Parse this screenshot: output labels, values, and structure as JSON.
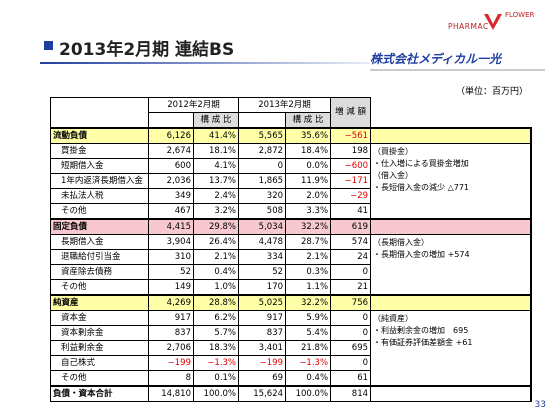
{
  "header": {
    "logo_left": "PHARMAC",
    "logo_right": "FLOWER",
    "title": "2013年2月期 連結BS",
    "company": "株式会社メディカル一光"
  },
  "unit": "（単位：百万円）",
  "table": {
    "columns": {
      "period1": "2012年2月期",
      "period2": "2013年2月期",
      "ratio1": "構 成 比",
      "ratio2": "構 成 比",
      "diff": "増 減 額"
    },
    "groups": [
      {
        "row": [
          "流動負債",
          "6,126",
          "41.4%",
          "5,565",
          "35.6%",
          "−561"
        ],
        "items": [
          [
            "買掛金",
            "2,674",
            "18.1%",
            "2,872",
            "18.4%",
            "198"
          ],
          [
            "短期借入金",
            "600",
            "4.1%",
            "0",
            "0.0%",
            "−600"
          ],
          [
            "1年内返済長期借入金",
            "2,036",
            "13.7%",
            "1,865",
            "11.9%",
            "−171"
          ],
          [
            "未払法人税",
            "349",
            "2.4%",
            "320",
            "2.0%",
            "−29"
          ],
          [
            "その他",
            "467",
            "3.2%",
            "508",
            "3.3%",
            "41"
          ]
        ],
        "notes": [
          "（買掛金）",
          "・仕入増による買掛金増加",
          "（借入金）",
          "・長短借入金の減少 △771"
        ]
      },
      {
        "row": [
          "固定負債",
          "4,415",
          "29.8%",
          "5,034",
          "32.2%",
          "619"
        ],
        "items": [
          [
            "長期借入金",
            "3,904",
            "26.4%",
            "4,478",
            "28.7%",
            "574"
          ],
          [
            "退職給付引当金",
            "310",
            "2.1%",
            "334",
            "2.1%",
            "24"
          ],
          [
            "資産除去債務",
            "52",
            "0.4%",
            "52",
            "0.3%",
            "0"
          ],
          [
            "その他",
            "149",
            "1.0%",
            "170",
            "1.1%",
            "21"
          ]
        ],
        "notes": [
          "（長期借入金）",
          "・長期借入金の増加 +574"
        ]
      },
      {
        "row": [
          "純資産",
          "4,269",
          "28.8%",
          "5,025",
          "32.2%",
          "756"
        ],
        "items": [
          [
            "資本金",
            "917",
            "6.2%",
            "917",
            "5.9%",
            "0"
          ],
          [
            "資本剰余金",
            "837",
            "5.7%",
            "837",
            "5.4%",
            "0"
          ],
          [
            "利益剰余金",
            "2,706",
            "18.3%",
            "3,401",
            "21.8%",
            "695"
          ],
          [
            "自己株式",
            "−199",
            "−1.3%",
            "−199",
            "−1.3%",
            "0"
          ],
          [
            "その他",
            "8",
            "0.1%",
            "69",
            "0.4%",
            "61"
          ]
        ],
        "notes": [
          "（純資産）",
          "・利益剰余金の増加　695",
          "・有価証券評価差額金 +61"
        ]
      }
    ],
    "total": [
      "負債・資本合計",
      "14,810",
      "100.0%",
      "15,624",
      "100.0%",
      "814"
    ]
  },
  "page_number": "33"
}
